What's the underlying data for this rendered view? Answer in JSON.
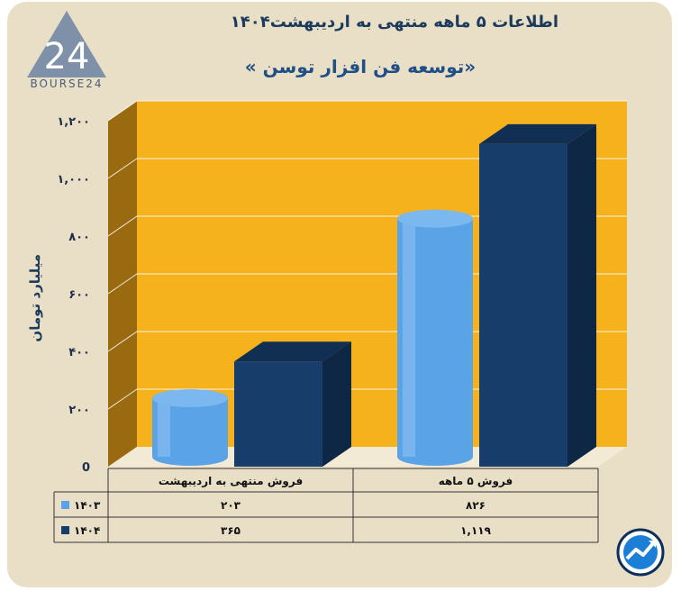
{
  "header": {
    "title": "اطلاعات ۵ ماهه منتهی به اردیبهشت۱۴۰۴",
    "subtitle": "«توسعه فن افزار توسن »"
  },
  "logo": {
    "text": "BOURSE24",
    "mark": "24"
  },
  "chart_data": {
    "type": "bar",
    "ylabel": "میلیارد تومان",
    "ylim": [
      0,
      1200
    ],
    "yticks": [
      {
        "value": 0,
        "label": "0"
      },
      {
        "value": 200,
        "label": "۲۰۰"
      },
      {
        "value": 400,
        "label": "۴۰۰"
      },
      {
        "value": 600,
        "label": "۶۰۰"
      },
      {
        "value": 800,
        "label": "۸۰۰"
      },
      {
        "value": 1000,
        "label": "۱,۰۰۰"
      },
      {
        "value": 1200,
        "label": "۱,۲۰۰"
      }
    ],
    "categories": [
      "فروش منتهی به  اردیبهشت",
      "فروش ۵ ماهه"
    ],
    "series": [
      {
        "name": "۱۴۰۳",
        "values": [
          203,
          826
        ],
        "labels": [
          "۲۰۳",
          "۸۲۶"
        ],
        "color": "#5aa3e6",
        "shape": "cylinder"
      },
      {
        "name": "۱۴۰۴",
        "values": [
          365,
          1119
        ],
        "labels": [
          "۳۶۵",
          "۱,۱۱۹"
        ],
        "color": "#173d6b",
        "shape": "box"
      }
    ],
    "grid": true,
    "legend": "data-table",
    "colors": {
      "wall": "#f5b21d",
      "side_wall": "#9a6a10",
      "floor": "#f3ead6"
    }
  },
  "badge": {
    "icon": "trend-badge-icon"
  }
}
